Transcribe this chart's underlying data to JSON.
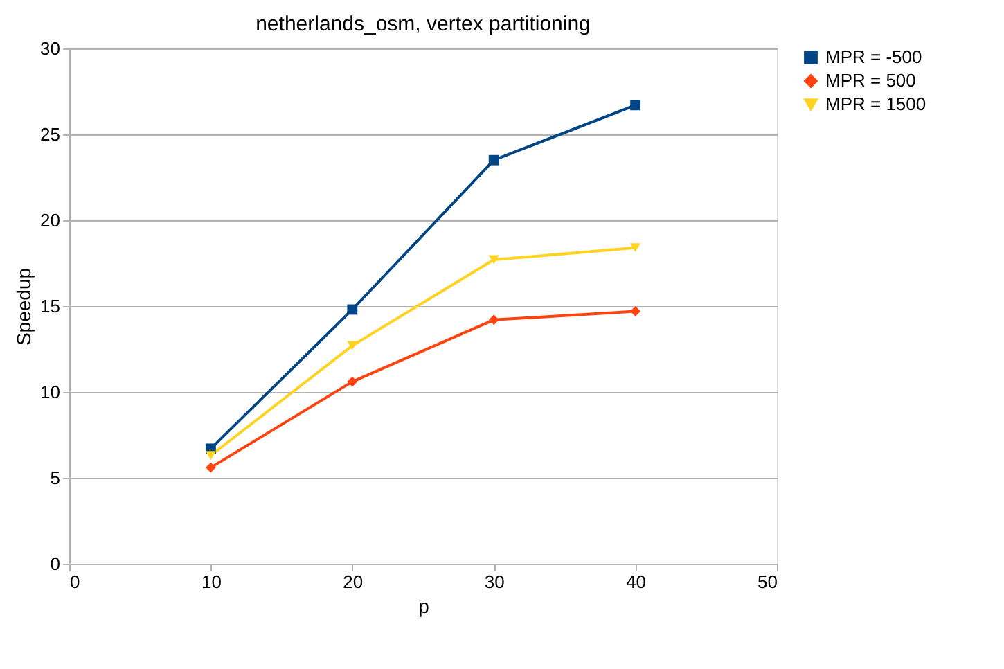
{
  "chart_data": {
    "type": "line",
    "title": "netherlands_osm, vertex partitioning",
    "xlabel": "p",
    "ylabel": "Speedup",
    "x": [
      10,
      20,
      30,
      40
    ],
    "series": [
      {
        "name": "MPR = -500",
        "color": "#004586",
        "marker": "square",
        "values": [
          6.7,
          14.8,
          23.5,
          26.7
        ]
      },
      {
        "name": "MPR = 500",
        "color": "#ff420e",
        "marker": "diamond",
        "values": [
          5.6,
          10.6,
          14.2,
          14.7
        ]
      },
      {
        "name": "MPR = 1500",
        "color": "#ffd320",
        "marker": "triangle",
        "values": [
          6.3,
          12.7,
          17.7,
          18.4
        ]
      }
    ],
    "xlim": [
      0,
      50
    ],
    "xticks": [
      0,
      10,
      20,
      30,
      40,
      50
    ],
    "ylim": [
      0,
      30
    ],
    "yticks": [
      0,
      5,
      10,
      15,
      20,
      25,
      30
    ],
    "grid": "y",
    "legend": "right",
    "line_style": "solid"
  }
}
